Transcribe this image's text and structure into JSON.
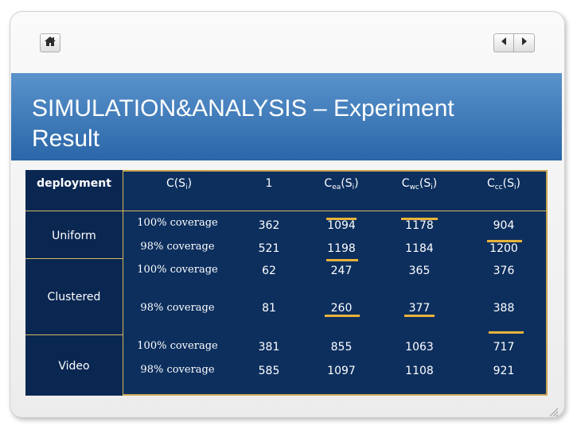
{
  "title": "SIMULATION&ANALYSIS – Experiment Result",
  "nav": {
    "home_icon": "home-icon",
    "prev_icon": "triangle-left-icon",
    "next_icon": "triangle-right-icon"
  },
  "colors": {
    "title_band": "#2a66a8",
    "table_bg": "#0d2f5e",
    "grid_line": "#d6b85e",
    "highlight_mark": "#e8b33a"
  },
  "table": {
    "headers": {
      "deployment": "deployment",
      "c": "C(S",
      "c_sub": "i",
      "c_close": ")",
      "one": "1",
      "cea": "C",
      "cea_sub": "ea",
      "cea_arg": "(S",
      "cea_arg_sub": "i",
      "cea_close": ")",
      "cwc": "C",
      "cwc_sub": "wc",
      "cwc_arg": "(S",
      "cwc_arg_sub": "i",
      "cwc_close": ")",
      "ccc": "C",
      "ccc_sub": "cc",
      "ccc_arg": "(S",
      "ccc_arg_sub": "i",
      "ccc_close": ")"
    },
    "groups": [
      "Uniform",
      "Clustered",
      "Video"
    ],
    "rows": [
      {
        "coverage": "100% coverage",
        "v1": "362",
        "cea": "1094",
        "cwc": "1178",
        "ccc": "904"
      },
      {
        "coverage": "98% coverage",
        "v1": "521",
        "cea": "1198",
        "cwc": "1184",
        "ccc": "1200"
      },
      {
        "coverage": "100% coverage",
        "v1": "62",
        "cea": "247",
        "cwc": "365",
        "ccc": "376"
      },
      {
        "coverage": "98% coverage",
        "v1": "81",
        "cea": "260",
        "cwc": "377",
        "ccc": "388"
      },
      {
        "coverage": "100% coverage",
        "v1": "381",
        "cea": "855",
        "cwc": "1063",
        "ccc": "717"
      },
      {
        "coverage": "98% coverage",
        "v1": "585",
        "cea": "1097",
        "cwc": "1108",
        "ccc": "921"
      }
    ]
  }
}
